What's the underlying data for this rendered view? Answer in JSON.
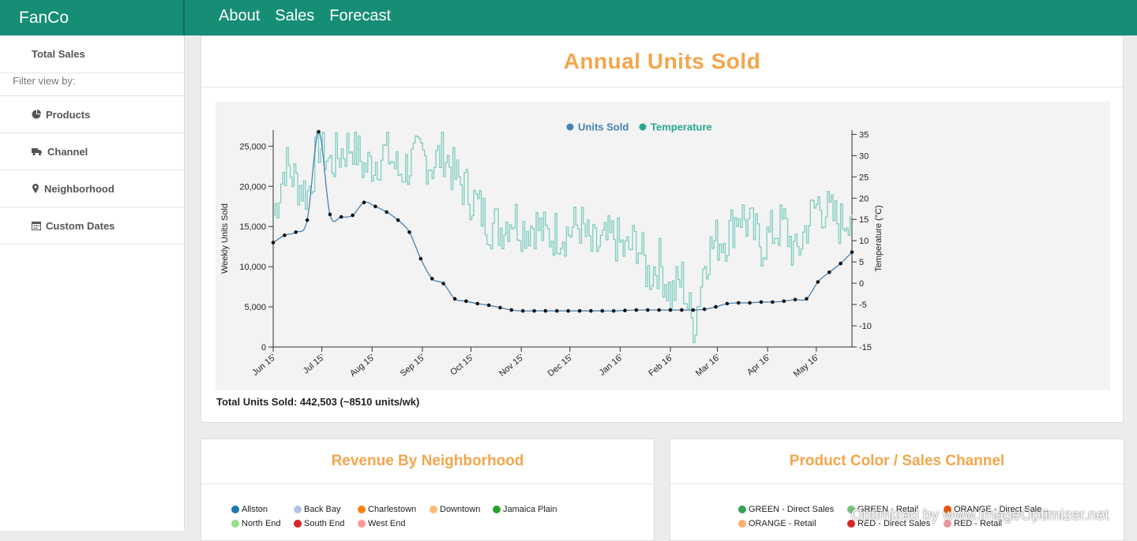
{
  "app": {
    "brand": "FanCo"
  },
  "nav": [
    {
      "label": "About"
    },
    {
      "label": "Sales"
    },
    {
      "label": "Forecast"
    }
  ],
  "sidebar": {
    "top_item": "Total Sales",
    "filter_label": "Filter view by:",
    "items": [
      {
        "label": "Products",
        "icon": "pie-chart-icon"
      },
      {
        "label": "Channel",
        "icon": "truck-icon"
      },
      {
        "label": "Neighborhood",
        "icon": "map-marker-icon"
      },
      {
        "label": "Custom Dates",
        "icon": "calendar-icon"
      }
    ]
  },
  "main": {
    "title": "Annual Units Sold",
    "total_text": "Total Units Sold: 442,503 (~8510 units/wk)"
  },
  "chart_data": {
    "type": "line",
    "legend": [
      {
        "label": "Units Sold",
        "color": "#4682b4"
      },
      {
        "label": "Temperature",
        "color": "#27a891"
      }
    ],
    "legend_placement": "top-center",
    "ylabel": "Weekly Units Sold",
    "y2label": "Temperature (°C)",
    "ylim": [
      0,
      27000
    ],
    "y_ticks": [
      "0",
      "5,000",
      "10,000",
      "15,000",
      "20,000",
      "25,000"
    ],
    "y2lim": [
      -15,
      36
    ],
    "y2_ticks": [
      "-15",
      "-10",
      "-5",
      "0",
      "5",
      "10",
      "15",
      "20",
      "25",
      "30",
      "35"
    ],
    "x_ticks": [
      "Jun 15'",
      "Jul 15'",
      "Aug 15'",
      "Sep 15'",
      "Oct 15'",
      "Nov 15'",
      "Dec 15'",
      "Jan 16'",
      "Feb 16'",
      "Mar 16'",
      "Apr 16'",
      "May 16'"
    ],
    "grid": false,
    "series": [
      {
        "name": "Units Sold",
        "color": "#4682b4",
        "x": [
          "2015-06-01",
          "2015-06-08",
          "2015-06-15",
          "2015-06-22",
          "2015-06-29",
          "2015-07-06",
          "2015-07-13",
          "2015-07-20",
          "2015-07-27",
          "2015-08-03",
          "2015-08-10",
          "2015-08-17",
          "2015-08-24",
          "2015-08-31",
          "2015-09-07",
          "2015-09-14",
          "2015-09-21",
          "2015-09-28",
          "2015-10-05",
          "2015-10-12",
          "2015-10-19",
          "2015-10-26",
          "2015-11-02",
          "2015-11-09",
          "2015-11-16",
          "2015-11-23",
          "2015-11-30",
          "2015-12-07",
          "2015-12-14",
          "2015-12-21",
          "2015-12-28",
          "2016-01-04",
          "2016-01-11",
          "2016-01-18",
          "2016-01-25",
          "2016-02-01",
          "2016-02-08",
          "2016-02-15",
          "2016-02-22",
          "2016-02-29",
          "2016-03-07",
          "2016-03-14",
          "2016-03-21",
          "2016-03-28",
          "2016-04-04",
          "2016-04-11",
          "2016-04-18",
          "2016-04-25",
          "2016-05-02",
          "2016-05-09",
          "2016-05-16",
          "2016-05-23"
        ],
        "values": [
          13000,
          13900,
          14300,
          15800,
          26800,
          16500,
          16200,
          16400,
          18000,
          17500,
          16800,
          15800,
          14300,
          11000,
          8500,
          7900,
          6000,
          5700,
          5400,
          5200,
          4900,
          4600,
          4500,
          4500,
          4500,
          4500,
          4500,
          4500,
          4500,
          4500,
          4500,
          4550,
          4600,
          4600,
          4600,
          4600,
          4600,
          4600,
          4700,
          5000,
          5400,
          5500,
          5500,
          5600,
          5600,
          5700,
          5900,
          6000,
          8100,
          9300,
          10400,
          11800
        ]
      },
      {
        "name": "Temperature",
        "color": "#7ecdbf",
        "x": [
          "2015-06-01",
          "2015-06-08",
          "2015-06-15",
          "2015-06-22",
          "2015-06-29",
          "2015-07-06",
          "2015-07-13",
          "2015-07-20",
          "2015-07-27",
          "2015-08-03",
          "2015-08-10",
          "2015-08-17",
          "2015-08-24",
          "2015-08-31",
          "2015-09-07",
          "2015-09-14",
          "2015-09-21",
          "2015-09-28",
          "2015-10-05",
          "2015-10-12",
          "2015-10-19",
          "2015-10-26",
          "2015-11-02",
          "2015-11-09",
          "2015-11-16",
          "2015-11-23",
          "2015-11-30",
          "2015-12-07",
          "2015-12-14",
          "2015-12-21",
          "2015-12-28",
          "2016-01-04",
          "2016-01-11",
          "2016-01-18",
          "2016-01-25",
          "2016-02-01",
          "2016-02-08",
          "2016-02-15",
          "2016-02-22",
          "2016-02-29",
          "2016-03-07",
          "2016-03-14",
          "2016-03-21",
          "2016-03-28",
          "2016-04-04",
          "2016-04-11",
          "2016-04-18",
          "2016-04-25",
          "2016-05-02",
          "2016-05-09",
          "2016-05-16",
          "2016-05-23"
        ],
        "values": [
          16,
          28,
          24,
          21,
          33,
          28,
          31,
          33,
          27,
          29,
          31,
          26,
          28,
          30,
          28,
          31,
          25,
          22,
          18,
          14,
          13,
          16,
          13,
          14,
          11,
          12,
          12,
          14,
          8,
          9,
          11,
          7,
          10,
          2,
          5,
          -3,
          1,
          -11,
          6,
          10,
          11,
          17,
          13,
          9,
          12,
          14,
          6,
          14,
          19,
          16,
          14,
          18
        ]
      }
    ]
  },
  "neighborhood_panel": {
    "title": "Revenue By Neighborhood",
    "legend": [
      {
        "label": "Allston",
        "color": "#1f77b4"
      },
      {
        "label": "Back Bay",
        "color": "#aec7e8"
      },
      {
        "label": "Charlestown",
        "color": "#ff7f0e"
      },
      {
        "label": "Downtown",
        "color": "#ffbb78"
      },
      {
        "label": "Jamaica Plain",
        "color": "#2ca02c"
      },
      {
        "label": "North End",
        "color": "#98df8a"
      },
      {
        "label": "South End",
        "color": "#d62728"
      },
      {
        "label": "West End",
        "color": "#ff9896"
      }
    ]
  },
  "product_panel": {
    "title": "Product Color / Sales Channel",
    "legend": [
      {
        "label": "GREEN - Direct Sales",
        "color": "#31a354"
      },
      {
        "label": "GREEN - Retail",
        "color": "#74c476"
      },
      {
        "label": "ORANGE - Direct Sale...",
        "color": "#e6550d"
      },
      {
        "label": "ORANGE - Retail",
        "color": "#fdae6b"
      },
      {
        "label": "RED - Direct Sales",
        "color": "#d62728"
      },
      {
        "label": "RED - Retail",
        "color": "#e7969c"
      }
    ]
  },
  "watermark": "Optimized by www.ImageOptimizer.net"
}
